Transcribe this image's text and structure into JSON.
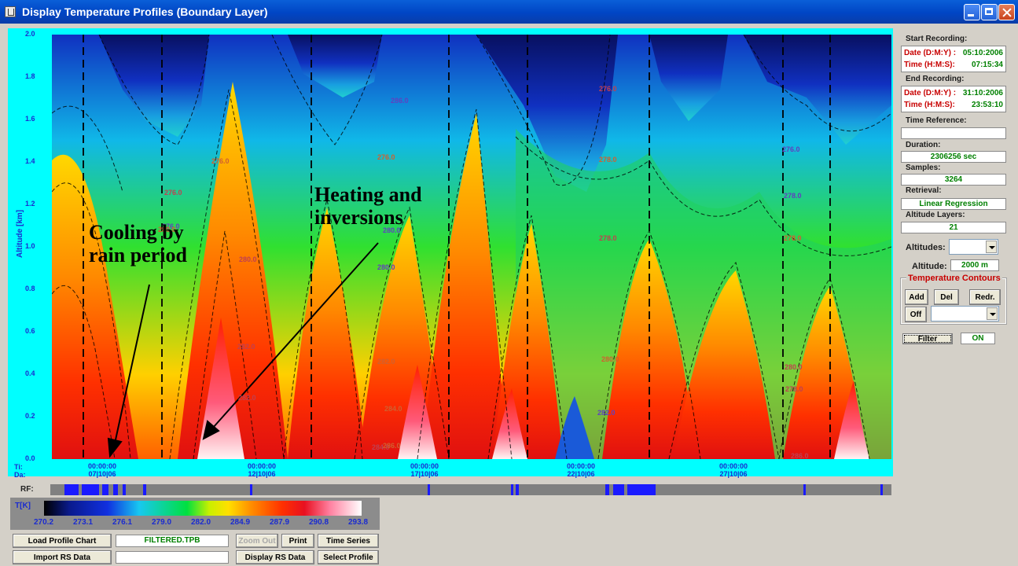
{
  "window": {
    "title": "Display Temperature Profiles (Boundary Layer)"
  },
  "plot": {
    "y_label": "Altitude [km]",
    "y_ticks": [
      "2.0",
      "1.8",
      "1.6",
      "1.4",
      "1.2",
      "1.0",
      "0.8",
      "0.6",
      "0.4",
      "0.2",
      "0.0"
    ],
    "x_row_time_label": "Ti:",
    "x_row_date_label": "Da:",
    "x_ticks": [
      {
        "time": "00:00:00",
        "date": "07|10|06"
      },
      {
        "time": "00:00:00",
        "date": "12|10|06"
      },
      {
        "time": "00:00:00",
        "date": "17|10|06"
      },
      {
        "time": "00:00:00",
        "date": "22|10|06"
      },
      {
        "time": "00:00:00",
        "date": "27|10|06"
      }
    ],
    "contour_labels": [
      "276.0",
      "276.0",
      "276.0",
      "276.0",
      "276.0",
      "276.0",
      "280.0",
      "280.0",
      "280.0",
      "280.0",
      "280.0",
      "280.0",
      "280.0",
      "282.0",
      "282.0",
      "282.0",
      "282.0",
      "284.0",
      "284.0",
      "284.0",
      "284.0",
      "286.0",
      "286.0",
      "286.0",
      "278.0",
      "278.0",
      "278.0",
      "278.0",
      "278.0"
    ],
    "colors": {
      "panel": "#00ffff",
      "cold": "#0a1a8c",
      "mid": "#00e000",
      "warm": "#ff2a00",
      "hot": "#fff0f0"
    }
  },
  "annotations": {
    "cooling": [
      "Cooling by",
      "rain period"
    ],
    "heating": [
      "Heating and",
      "inversions"
    ]
  },
  "rf": {
    "label": "RF:"
  },
  "legend": {
    "unit_label": "T[K]",
    "ticks": [
      "270.2",
      "273.1",
      "276.1",
      "279.0",
      "282.0",
      "284.9",
      "287.9",
      "290.8",
      "293.8"
    ]
  },
  "side": {
    "start_title": "Start Recording:",
    "start_date_label": "Date (D:M:Y) :",
    "start_date": "05:10:2006",
    "start_time_label": "Time (H:M:S):",
    "start_time": "07:15:34",
    "end_title": "End Recording:",
    "end_date_label": "Date (D:M:Y) :",
    "end_date": "31:10:2006",
    "end_time_label": "Time (H:M:S):",
    "end_time": "23:53:10",
    "time_ref_title": "Time Reference:",
    "time_ref_value": "",
    "duration_title": "Duration:",
    "duration_value": "2306256 sec",
    "samples_title": "Samples:",
    "samples_value": "3264",
    "retrieval_title": "Retrieval:",
    "retrieval_value": "Linear Regression",
    "layers_title": "Altitude Layers:",
    "layers_value": "21",
    "altitudes_label": "Altitudes:",
    "altitude_label": "Altitude:",
    "altitude_value": "2000 m",
    "contours_title": "Temperature Contours",
    "add_label": "Add",
    "del_label": "Del",
    "redr_label": "Redr.",
    "off_label": "Off",
    "filter_label": "Filter",
    "filter_state": "ON"
  },
  "bottom": {
    "load_label": "Load Profile Chart",
    "file_value": "FILTERED.TPB",
    "zoom_label": "Zoom Out",
    "print_label": "Print",
    "timeseries_label": "Time Series",
    "import_label": "Import RS Data",
    "rs_value": "",
    "display_label": "Display RS Data",
    "select_label": "Select Profile"
  }
}
